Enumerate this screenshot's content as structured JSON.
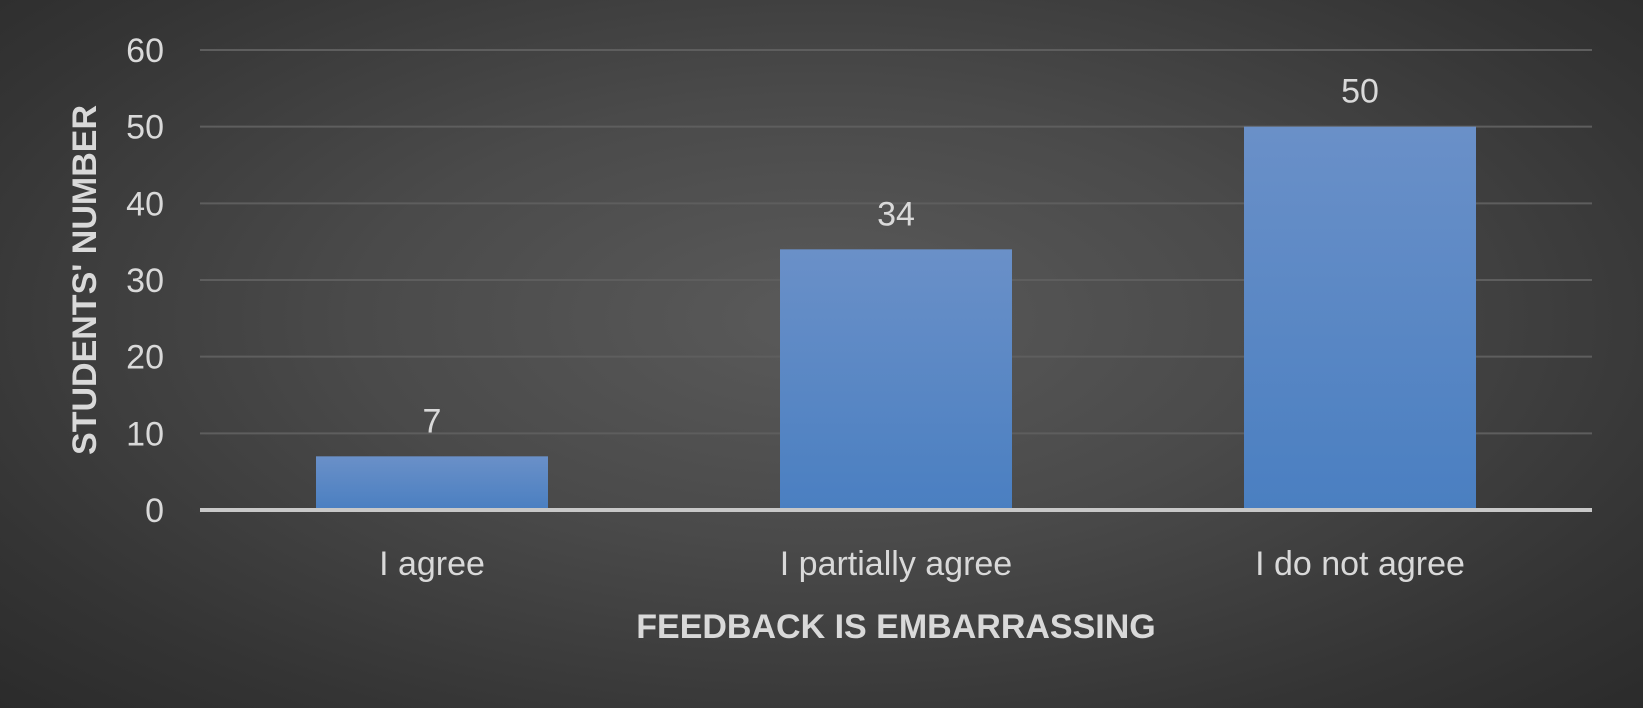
{
  "chart_data": {
    "type": "bar",
    "title": "",
    "categories": [
      "I agree",
      "I partially agree",
      "I do not agree"
    ],
    "series": [
      {
        "values": [
          7,
          34,
          50
        ]
      }
    ],
    "xlabel": "FEEDBACK IS EMBARRASSING",
    "ylabel": "STUDENTS' NUMBER",
    "ylim": [
      0,
      60
    ],
    "yticks": [
      "0",
      "10",
      "20",
      "30",
      "40",
      "50",
      "60"
    ],
    "data_labels": [
      "7",
      "34",
      "50"
    ],
    "grid": true,
    "legend": "none",
    "colors": {
      "bar": "#5b87c5",
      "gridline": "#5e5e5e",
      "axis_line": "#c8c8c8",
      "text": "#d9d9d9"
    }
  }
}
